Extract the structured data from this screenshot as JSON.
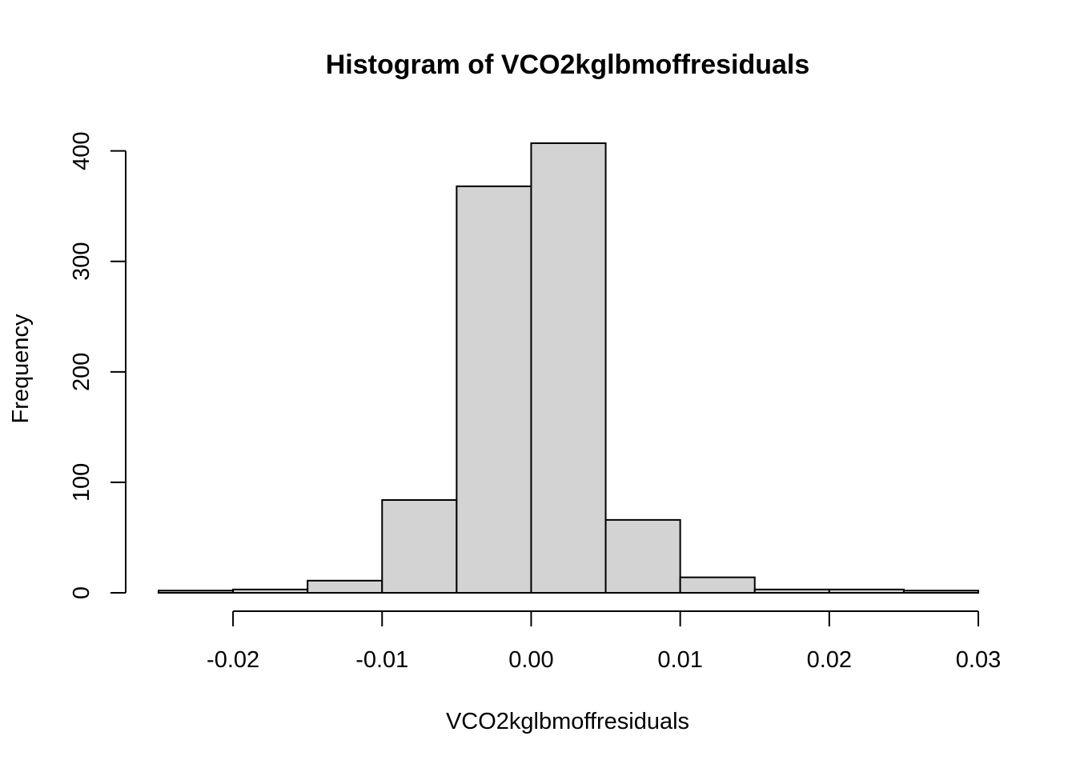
{
  "chart_data": {
    "type": "bar",
    "title": "Histogram of VCO2kglbmoffresiduals",
    "xlabel": "VCO2kglbmoffresiduals",
    "ylabel": "Frequency",
    "bin_edges": [
      -0.025,
      -0.02,
      -0.015,
      -0.01,
      -0.005,
      0.0,
      0.005,
      0.01,
      0.015,
      0.02,
      0.025,
      0.03
    ],
    "values": [
      2,
      3,
      11,
      84,
      368,
      407,
      66,
      14,
      3,
      3,
      2
    ],
    "xlim": [
      -0.025,
      0.03
    ],
    "ylim": [
      0,
      407
    ],
    "x_ticks": [
      -0.02,
      -0.01,
      0.0,
      0.01,
      0.02,
      0.03
    ],
    "x_tick_labels": [
      "-0.02",
      "-0.01",
      "0.00",
      "0.01",
      "0.02",
      "0.03"
    ],
    "y_ticks": [
      0,
      100,
      200,
      300,
      400
    ],
    "y_tick_labels": [
      "0",
      "100",
      "200",
      "300",
      "400"
    ],
    "bar_fill": "#d3d3d3",
    "bar_stroke": "#000000"
  }
}
